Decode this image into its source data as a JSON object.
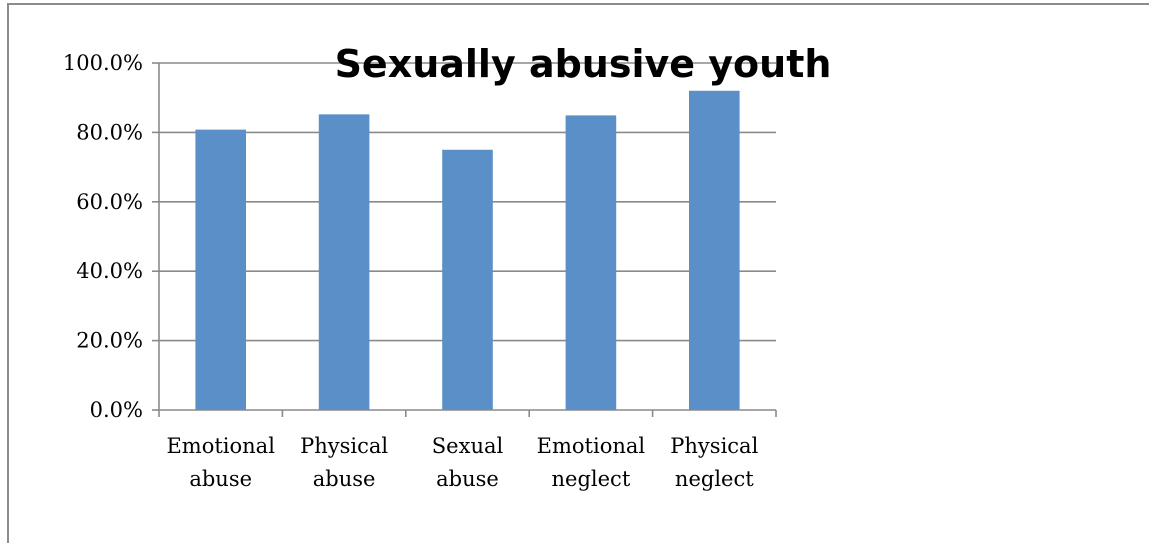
{
  "chart_data": {
    "type": "bar",
    "title": "Sexually abusive youth",
    "categories": [
      [
        "Emotional",
        "abuse"
      ],
      [
        "Physical",
        "abuse"
      ],
      [
        "Sexual",
        "abuse"
      ],
      [
        "Emotional",
        "neglect"
      ],
      [
        "Physical",
        "neglect"
      ]
    ],
    "values": [
      80.8,
      85.2,
      75.0,
      84.9,
      92.0
    ],
    "ylim": [
      0,
      100
    ],
    "yticks": [
      "0.0%",
      "20.0%",
      "40.0%",
      "60.0%",
      "80.0%",
      "100.0%"
    ],
    "grid": true,
    "legend": "none",
    "bar_color": "#5b8fc7",
    "grid_color": "#8a8a8a"
  }
}
